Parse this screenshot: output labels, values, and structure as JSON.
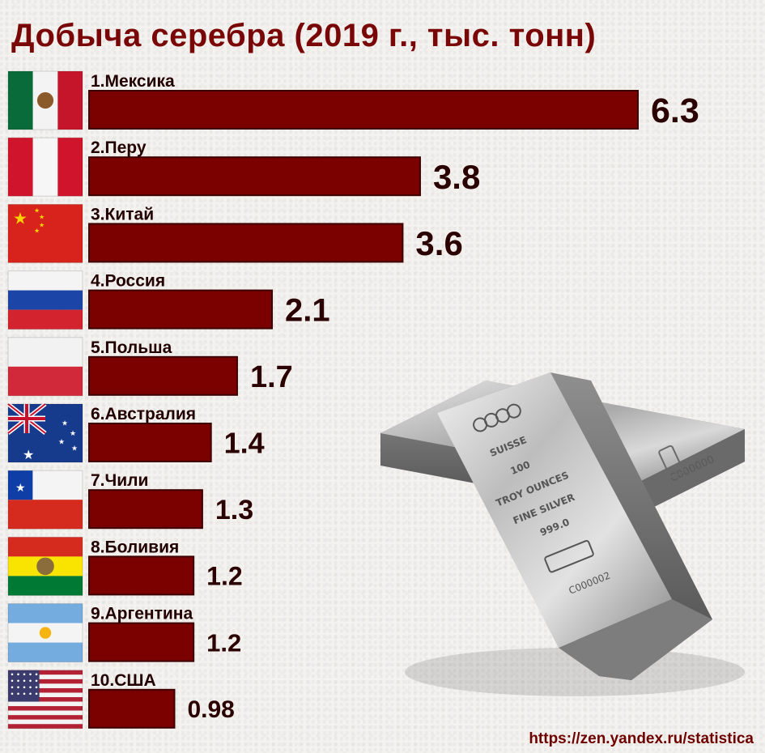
{
  "title": "Добыча серебра (2019 г., тыс. тонн)",
  "source": "https://zen.yandex.ru/statistica",
  "colors": {
    "bar": "#7b0000",
    "bar_edge": "#3d0000",
    "title": "#7a0707"
  },
  "bullion": {
    "line1": "SUISSE",
    "line2": "100",
    "line3": "TROY OUNCES",
    "line4": "FINE SILVER",
    "line5": "999.0",
    "serial": "C000002",
    "serial_back": "C000000"
  },
  "chart_data": {
    "type": "bar",
    "orientation": "horizontal",
    "title": "Добыча серебра (2019 г., тыс. тонн)",
    "categories": [
      "1.Мексика",
      "2.Перу",
      "3.Китай",
      "4.Россия",
      "5.Польша",
      "6.Австралия",
      "7.Чили",
      "8.Боливия",
      "9.Аргентина",
      "10.США"
    ],
    "values": [
      6.3,
      3.8,
      3.6,
      2.1,
      1.7,
      1.4,
      1.3,
      1.2,
      1.2,
      0.98
    ],
    "value_labels": [
      "6.3",
      "3.8",
      "3.6",
      "2.1",
      "1.7",
      "1.4",
      "1.3",
      "1.2",
      "1.2",
      "0.98"
    ],
    "flags": [
      "mexico-flag",
      "peru-flag",
      "china-flag",
      "russia-flag",
      "poland-flag",
      "australia-flag",
      "chile-flag",
      "bolivia-flag",
      "argentina-flag",
      "usa-flag"
    ],
    "xlabel": "",
    "ylabel": "",
    "grid": false,
    "legend": "none"
  }
}
